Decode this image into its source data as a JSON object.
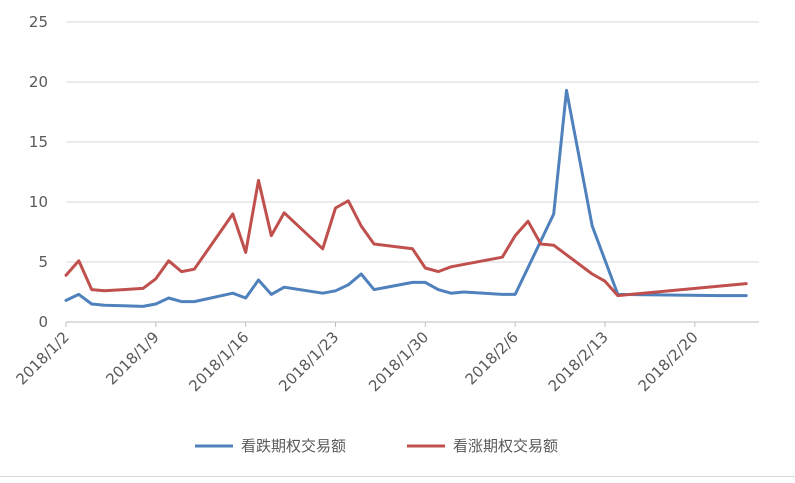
{
  "chart_data": {
    "type": "line",
    "title": "",
    "xlabel": "",
    "ylabel": "",
    "ylim": [
      0,
      25
    ],
    "yticks": [
      0,
      5,
      10,
      15,
      20,
      25
    ],
    "xlim": [
      "2018/1/2",
      "2018/2/25"
    ],
    "xticks": [
      "2018/1/2",
      "2018/1/9",
      "2018/1/16",
      "2018/1/23",
      "2018/1/30",
      "2018/2/6",
      "2018/2/13",
      "2018/2/20"
    ],
    "grid": "horizontal",
    "legend": "bottom",
    "series": [
      {
        "name": "看跌期权交易额",
        "color": "#4F81BD",
        "points": [
          {
            "x": "2018/1/2",
            "y": 1.8
          },
          {
            "x": "2018/1/3",
            "y": 2.3
          },
          {
            "x": "2018/1/4",
            "y": 1.5
          },
          {
            "x": "2018/1/5",
            "y": 1.4
          },
          {
            "x": "2018/1/8",
            "y": 1.3
          },
          {
            "x": "2018/1/9",
            "y": 1.5
          },
          {
            "x": "2018/1/10",
            "y": 2.0
          },
          {
            "x": "2018/1/11",
            "y": 1.7
          },
          {
            "x": "2018/1/12",
            "y": 1.7
          },
          {
            "x": "2018/1/15",
            "y": 2.4
          },
          {
            "x": "2018/1/16",
            "y": 2.0
          },
          {
            "x": "2018/1/17",
            "y": 3.5
          },
          {
            "x": "2018/1/18",
            "y": 2.3
          },
          {
            "x": "2018/1/19",
            "y": 2.9
          },
          {
            "x": "2018/1/22",
            "y": 2.4
          },
          {
            "x": "2018/1/23",
            "y": 2.6
          },
          {
            "x": "2018/1/24",
            "y": 3.1
          },
          {
            "x": "2018/1/25",
            "y": 4.0
          },
          {
            "x": "2018/1/26",
            "y": 2.7
          },
          {
            "x": "2018/1/29",
            "y": 3.3
          },
          {
            "x": "2018/1/30",
            "y": 3.3
          },
          {
            "x": "2018/1/31",
            "y": 2.7
          },
          {
            "x": "2018/2/1",
            "y": 2.4
          },
          {
            "x": "2018/2/2",
            "y": 2.5
          },
          {
            "x": "2018/2/5",
            "y": 2.3
          },
          {
            "x": "2018/2/6",
            "y": 2.3
          },
          {
            "x": "2018/2/9",
            "y": 9.0
          },
          {
            "x": "2018/2/10",
            "y": 19.3
          },
          {
            "x": "2018/2/12",
            "y": 8.0
          },
          {
            "x": "2018/2/14",
            "y": 2.3
          },
          {
            "x": "2018/2/22",
            "y": 2.2
          },
          {
            "x": "2018/2/24",
            "y": 2.2
          }
        ]
      },
      {
        "name": "看涨期权交易额",
        "color": "#C0504D",
        "points": [
          {
            "x": "2018/1/2",
            "y": 3.9
          },
          {
            "x": "2018/1/3",
            "y": 5.1
          },
          {
            "x": "2018/1/4",
            "y": 2.7
          },
          {
            "x": "2018/1/5",
            "y": 2.6
          },
          {
            "x": "2018/1/8",
            "y": 2.8
          },
          {
            "x": "2018/1/9",
            "y": 3.6
          },
          {
            "x": "2018/1/10",
            "y": 5.1
          },
          {
            "x": "2018/1/11",
            "y": 4.2
          },
          {
            "x": "2018/1/12",
            "y": 4.4
          },
          {
            "x": "2018/1/15",
            "y": 9.0
          },
          {
            "x": "2018/1/16",
            "y": 5.8
          },
          {
            "x": "2018/1/17",
            "y": 11.8
          },
          {
            "x": "2018/1/18",
            "y": 7.2
          },
          {
            "x": "2018/1/19",
            "y": 9.1
          },
          {
            "x": "2018/1/22",
            "y": 6.1
          },
          {
            "x": "2018/1/23",
            "y": 9.5
          },
          {
            "x": "2018/1/24",
            "y": 10.1
          },
          {
            "x": "2018/1/25",
            "y": 8.0
          },
          {
            "x": "2018/1/26",
            "y": 6.5
          },
          {
            "x": "2018/1/29",
            "y": 6.1
          },
          {
            "x": "2018/1/30",
            "y": 4.5
          },
          {
            "x": "2018/1/31",
            "y": 4.2
          },
          {
            "x": "2018/2/1",
            "y": 4.6
          },
          {
            "x": "2018/2/5",
            "y": 5.4
          },
          {
            "x": "2018/2/6",
            "y": 7.2
          },
          {
            "x": "2018/2/7",
            "y": 8.4
          },
          {
            "x": "2018/2/8",
            "y": 6.5
          },
          {
            "x": "2018/2/9",
            "y": 6.4
          },
          {
            "x": "2018/2/12",
            "y": 4.0
          },
          {
            "x": "2018/2/13",
            "y": 3.4
          },
          {
            "x": "2018/2/14",
            "y": 2.2
          },
          {
            "x": "2018/2/15",
            "y": 2.3
          },
          {
            "x": "2018/2/24",
            "y": 3.2
          }
        ]
      }
    ]
  }
}
